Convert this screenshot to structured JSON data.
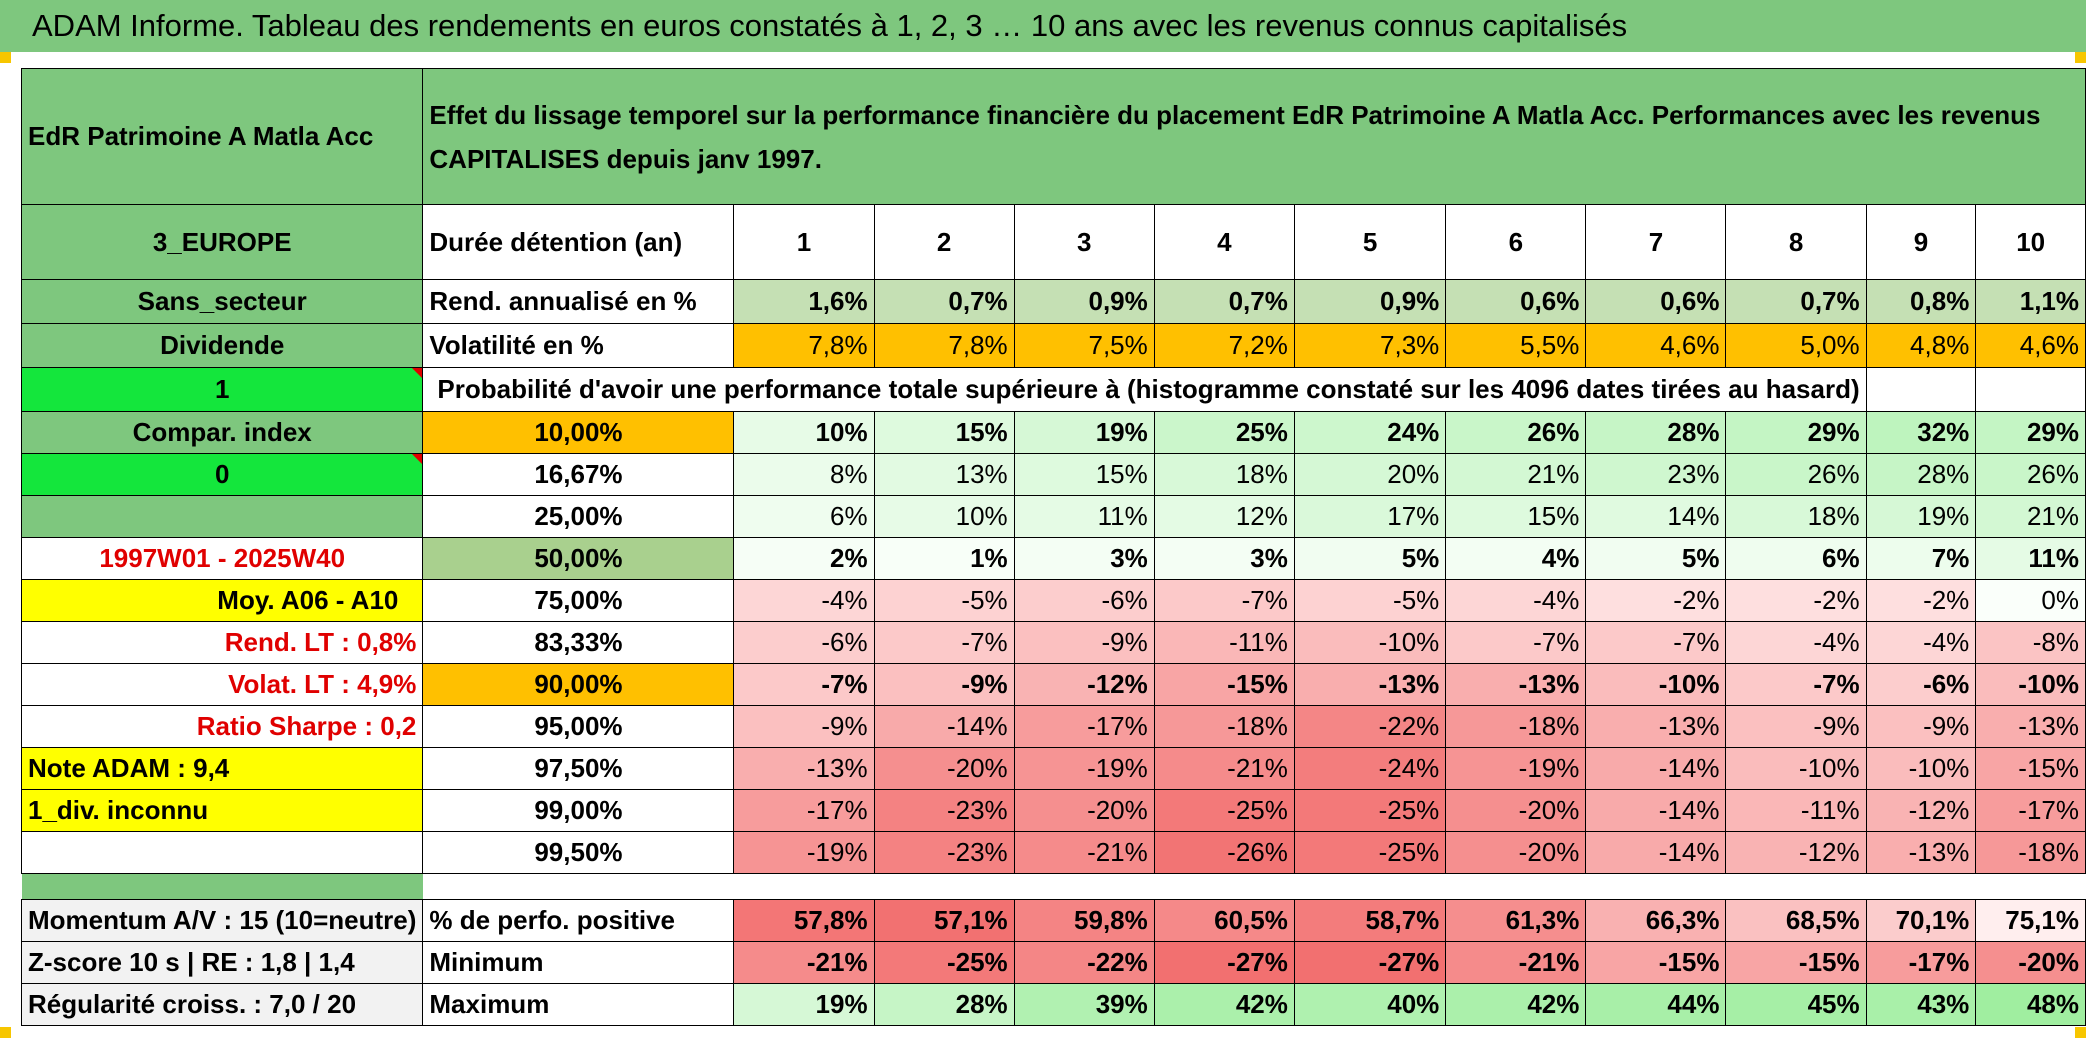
{
  "title": "ADAM Informe. Tableau des rendements en euros constatés à 1, 2, 3 … 10 ans avec les revenus connus capitalisés",
  "fund_name": "EdR Patrimoine A Matla Acc",
  "description": "Effet du lissage temporel sur la performance financière du placement EdR Patrimoine A Matla Acc. Performances avec les revenus CAPITALISES depuis janv 1997.",
  "side": {
    "region": "3_EUROPE",
    "sector": "Sans_secteur",
    "dividend": "Dividende",
    "flag1": "1",
    "compar": "Compar. index",
    "flag0": "0",
    "period": "1997W01 - 2025W40",
    "moy": "Moy. A06 - A10",
    "rend_lt": "Rend. LT :   0,8%",
    "volat_lt": "Volat. LT :   4,9%",
    "sharpe": "Ratio Sharpe :    0,2",
    "note": "Note ADAM : 9,4",
    "div_inconnu": "1_div. inconnu",
    "momentum": "Momentum A/V : 15 (10=neutre)",
    "zscore": "Z-score 10 s | RE : 1,8 | 1,4",
    "regularite": "Régularité croiss. : 7,0 / 20"
  },
  "duree_label": "Durée détention (an)",
  "years": [
    "1",
    "2",
    "3",
    "4",
    "5",
    "6",
    "7",
    "8",
    "9",
    "10"
  ],
  "rend_label": "Rend. annualisé en %",
  "rend": [
    "1,6%",
    "0,7%",
    "0,9%",
    "0,7%",
    "0,9%",
    "0,6%",
    "0,6%",
    "0,7%",
    "0,8%",
    "1,1%"
  ],
  "vol_label": "Volatilité en %",
  "vol": [
    "7,8%",
    "7,8%",
    "7,5%",
    "7,2%",
    "7,3%",
    "5,5%",
    "4,6%",
    "5,0%",
    "4,8%",
    "4,6%"
  ],
  "prob_label": "Probabilité d'avoir une performance totale supérieure à (histogramme constaté sur les 4096 dates tirées au hasard)",
  "prob_rows": [
    {
      "level": "10,00%",
      "values": [
        "10%",
        "15%",
        "19%",
        "25%",
        "24%",
        "26%",
        "28%",
        "29%",
        "32%",
        "29%"
      ]
    },
    {
      "level": "16,67%",
      "values": [
        "8%",
        "13%",
        "15%",
        "18%",
        "20%",
        "21%",
        "23%",
        "26%",
        "28%",
        "26%"
      ]
    },
    {
      "level": "25,00%",
      "values": [
        "6%",
        "10%",
        "11%",
        "12%",
        "17%",
        "15%",
        "14%",
        "18%",
        "19%",
        "21%"
      ]
    },
    {
      "level": "50,00%",
      "values": [
        "2%",
        "1%",
        "3%",
        "3%",
        "5%",
        "4%",
        "5%",
        "6%",
        "7%",
        "11%"
      ]
    },
    {
      "level": "75,00%",
      "values": [
        "-4%",
        "-5%",
        "-6%",
        "-7%",
        "-5%",
        "-4%",
        "-2%",
        "-2%",
        "-2%",
        "0%"
      ]
    },
    {
      "level": "83,33%",
      "values": [
        "-6%",
        "-7%",
        "-9%",
        "-11%",
        "-10%",
        "-7%",
        "-7%",
        "-4%",
        "-4%",
        "-8%"
      ]
    },
    {
      "level": "90,00%",
      "values": [
        "-7%",
        "-9%",
        "-12%",
        "-15%",
        "-13%",
        "-13%",
        "-10%",
        "-7%",
        "-6%",
        "-10%"
      ]
    },
    {
      "level": "95,00%",
      "values": [
        "-9%",
        "-14%",
        "-17%",
        "-18%",
        "-22%",
        "-18%",
        "-13%",
        "-9%",
        "-9%",
        "-13%"
      ]
    },
    {
      "level": "97,50%",
      "values": [
        "-13%",
        "-20%",
        "-19%",
        "-21%",
        "-24%",
        "-19%",
        "-14%",
        "-10%",
        "-10%",
        "-15%"
      ]
    },
    {
      "level": "99,00%",
      "values": [
        "-17%",
        "-23%",
        "-20%",
        "-25%",
        "-25%",
        "-20%",
        "-14%",
        "-11%",
        "-12%",
        "-17%"
      ]
    },
    {
      "level": "99,50%",
      "values": [
        "-19%",
        "-23%",
        "-21%",
        "-26%",
        "-25%",
        "-20%",
        "-14%",
        "-12%",
        "-13%",
        "-18%"
      ]
    }
  ],
  "pos_label": "% de perfo. positive",
  "pos": [
    "57,8%",
    "57,1%",
    "59,8%",
    "60,5%",
    "58,7%",
    "61,3%",
    "66,3%",
    "68,5%",
    "70,1%",
    "75,1%"
  ],
  "min_label": "Minimum",
  "min": [
    "-21%",
    "-25%",
    "-22%",
    "-27%",
    "-27%",
    "-21%",
    "-15%",
    "-15%",
    "-17%",
    "-20%"
  ],
  "max_label": "Maximum",
  "max": [
    "19%",
    "28%",
    "39%",
    "42%",
    "40%",
    "42%",
    "44%",
    "45%",
    "43%",
    "48%"
  ],
  "colors": {
    "header_green": "#7ec77e",
    "flag_green": "#14e63c",
    "highlight_yellow": "#ffff00",
    "highlight_orange": "#ffc000",
    "text_red": "#e00000"
  }
}
